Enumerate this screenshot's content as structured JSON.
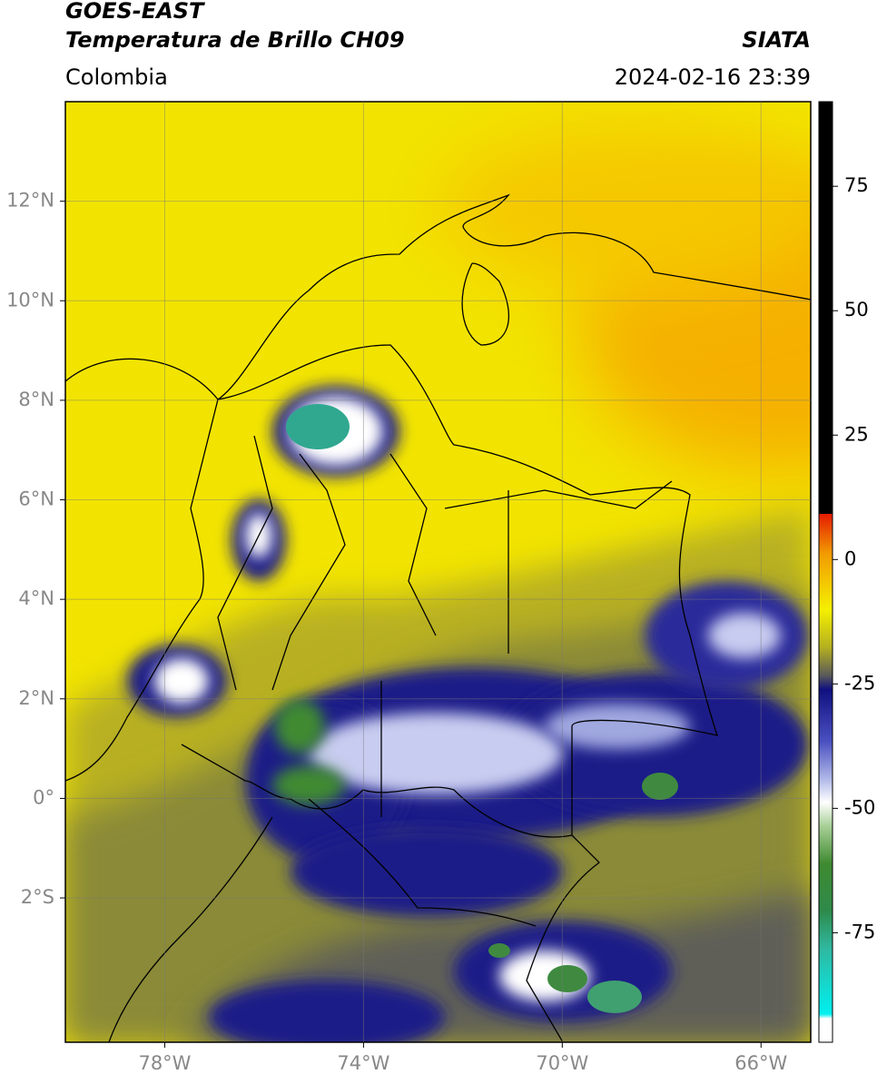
{
  "header": {
    "title": "GOES-EAST",
    "subtitle": "Temperatura de Brillo CH09",
    "source": "SIATA",
    "region": "Colombia",
    "timestamp": "2024-02-16 23:39"
  },
  "map": {
    "xlim": [
      -80,
      -65
    ],
    "ylim": [
      -4.9,
      14
    ],
    "xticks": [
      {
        "value": -78,
        "label": "78°W"
      },
      {
        "value": -74,
        "label": "74°W"
      },
      {
        "value": -70,
        "label": "70°W"
      },
      {
        "value": -66,
        "label": "66°W"
      }
    ],
    "yticks": [
      {
        "value": 12,
        "label": "12°N"
      },
      {
        "value": 10,
        "label": "10°N"
      },
      {
        "value": 8,
        "label": "8°N"
      },
      {
        "value": 6,
        "label": "6°N"
      },
      {
        "value": 4,
        "label": "4°N"
      },
      {
        "value": 2,
        "label": "2°N"
      },
      {
        "value": 0,
        "label": "0°"
      },
      {
        "value": -2,
        "label": "2°S"
      }
    ],
    "grid": true
  },
  "colorbar": {
    "lim": [
      -97,
      92
    ],
    "ticks": [
      75,
      50,
      25,
      0,
      -25,
      -50,
      -75
    ]
  }
}
